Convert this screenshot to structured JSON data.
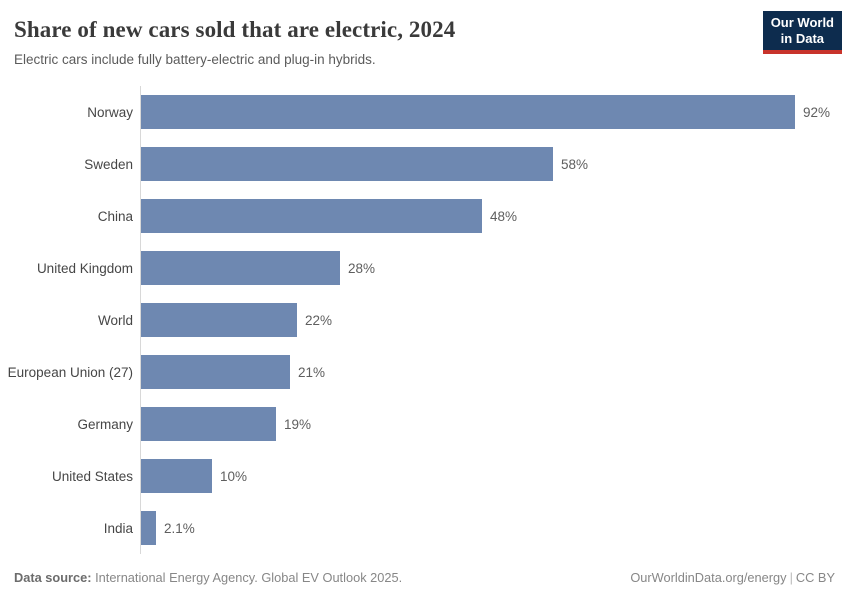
{
  "header": {
    "title": "Share of new cars sold that are electric, 2024",
    "subtitle": "Electric cars include fully battery-electric and plug-in hybrids.",
    "logo": {
      "line1": "Our World",
      "line2": "in Data"
    }
  },
  "chart_data": {
    "type": "bar",
    "orientation": "horizontal",
    "title": "Share of new cars sold that are electric, 2024",
    "subtitle": "Electric cars include fully battery-electric and plug-in hybrids.",
    "categories": [
      "Norway",
      "Sweden",
      "China",
      "United Kingdom",
      "World",
      "European Union (27)",
      "Germany",
      "United States",
      "India"
    ],
    "values": [
      92,
      58,
      48,
      28,
      22,
      21,
      19,
      10,
      2.1
    ],
    "value_labels": [
      "92%",
      "58%",
      "48%",
      "28%",
      "22%",
      "21%",
      "19%",
      "10%",
      "2.1%"
    ],
    "unit": "%",
    "xlabel": "",
    "ylabel": "",
    "xlim": [
      0,
      92
    ],
    "grid": "off",
    "legend": "none",
    "bar_color": "#6e88b1",
    "axis_line_color": "#d8d8d8"
  },
  "footer": {
    "datasource_label": "Data source:",
    "datasource_text": " International Energy Agency. Global EV Outlook 2025.",
    "url": "OurWorldinData.org/energy",
    "separator": "|",
    "license": "CC BY"
  }
}
